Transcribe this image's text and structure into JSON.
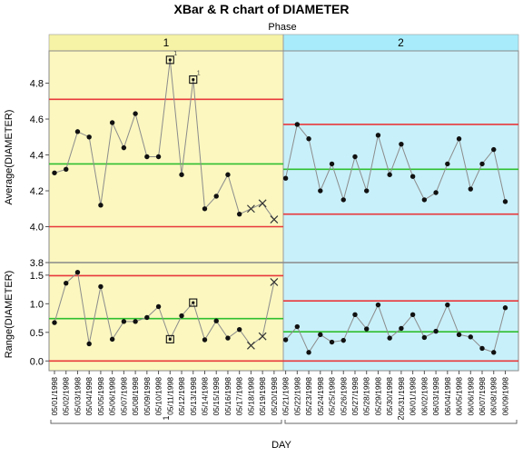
{
  "title": "XBar & R chart of DIAMETER",
  "phase_label": "Phase",
  "phases": [
    {
      "label": "1"
    },
    {
      "label": "2"
    }
  ],
  "ylabel_top": "Average(DIAMETER)",
  "ylabel_bottom": "Range(DIAMETER)",
  "xlabel": "DAY",
  "colors": {
    "phase1_bg": "#fbf7bf",
    "phase2_bg": "#c8f0fa",
    "phase1_header": "#f6f3a6",
    "phase2_header": "#a8ecfb",
    "limit_line": "#e8383b",
    "center_line": "#2fbf2f",
    "series_line": "#8c8c8c",
    "point": "#111111"
  },
  "chart_data": [
    {
      "type": "line",
      "name": "xbar",
      "ylabel": "Average(DIAMETER)",
      "ylim": [
        3.8,
        4.98
      ],
      "yticks": [
        "3.8",
        "4.0",
        "4.2",
        "4.4",
        "4.6",
        "4.8"
      ],
      "categories": [
        "05/01/1998",
        "05/02/1998",
        "05/03/1998",
        "05/04/1998",
        "05/05/1998",
        "05/06/1998",
        "05/07/1998",
        "05/08/1998",
        "05/09/1998",
        "05/10/1998",
        "05/11/1998",
        "05/12/1998",
        "05/13/1998",
        "05/14/1998",
        "05/15/1998",
        "05/16/1998",
        "05/17/1998",
        "05/18/1998",
        "05/19/1998",
        "05/20/1998",
        "05/21/1998",
        "05/22/1998",
        "05/23/1998",
        "05/24/1998",
        "05/25/1998",
        "05/26/1998",
        "05/27/1998",
        "05/28/1998",
        "05/29/1998",
        "05/30/1998",
        "05/31/1998",
        "06/01/1998",
        "06/02/1998",
        "06/03/1998",
        "06/04/1998",
        "06/05/1998",
        "06/06/1998",
        "06/07/1998",
        "06/08/1998",
        "06/09/1998"
      ],
      "values": [
        4.3,
        4.32,
        4.53,
        4.5,
        4.12,
        4.58,
        4.44,
        4.63,
        4.39,
        4.39,
        4.93,
        4.29,
        4.82,
        4.1,
        4.17,
        4.29,
        4.07,
        4.1,
        4.13,
        4.04,
        4.27,
        4.57,
        4.49,
        4.2,
        4.35,
        4.15,
        4.39,
        4.2,
        4.51,
        4.29,
        4.46,
        4.28,
        4.15,
        4.19,
        4.35,
        4.49,
        4.21,
        4.35,
        4.43,
        4.14
      ],
      "markers": [
        "dot",
        "dot",
        "dot",
        "dot",
        "dot",
        "dot",
        "dot",
        "dot",
        "dot",
        "dot",
        "square",
        "dot",
        "square",
        "dot",
        "dot",
        "dot",
        "dot",
        "x",
        "x",
        "x",
        "dot",
        "dot",
        "dot",
        "dot",
        "dot",
        "dot",
        "dot",
        "dot",
        "dot",
        "dot",
        "dot",
        "dot",
        "dot",
        "dot",
        "dot",
        "dot",
        "dot",
        "dot",
        "dot",
        "dot"
      ],
      "flags": [
        {
          "index": 10,
          "label": "1"
        },
        {
          "index": 12,
          "label": "1"
        }
      ],
      "phase_limits": [
        {
          "start": 0,
          "end": 19,
          "ucl": 4.71,
          "center": 4.35,
          "lcl": 4.0
        },
        {
          "start": 20,
          "end": 39,
          "ucl": 4.57,
          "center": 4.32,
          "lcl": 4.07
        }
      ]
    },
    {
      "type": "line",
      "name": "range",
      "ylabel": "Range(DIAMETER)",
      "ylim": [
        -0.17,
        1.72
      ],
      "yticks": [
        "0.0",
        "0.5",
        "1.0",
        "1.5"
      ],
      "values": [
        0.67,
        1.36,
        1.55,
        0.3,
        1.3,
        0.38,
        0.69,
        0.69,
        0.76,
        0.95,
        0.38,
        0.79,
        1.02,
        0.37,
        0.7,
        0.4,
        0.55,
        0.27,
        0.43,
        1.38,
        0.37,
        0.6,
        0.15,
        0.46,
        0.33,
        0.36,
        0.81,
        0.56,
        0.98,
        0.4,
        0.57,
        0.81,
        0.41,
        0.52,
        0.98,
        0.46,
        0.42,
        0.22,
        0.15,
        0.93
      ],
      "markers": [
        "dot",
        "dot",
        "dot",
        "dot",
        "dot",
        "dot",
        "dot",
        "dot",
        "dot",
        "dot",
        "square",
        "dot",
        "square",
        "dot",
        "dot",
        "dot",
        "dot",
        "x",
        "x",
        "x",
        "dot",
        "dot",
        "dot",
        "dot",
        "dot",
        "dot",
        "dot",
        "dot",
        "dot",
        "dot",
        "dot",
        "dot",
        "dot",
        "dot",
        "dot",
        "dot",
        "dot",
        "dot",
        "dot",
        "dot"
      ],
      "phase_limits": [
        {
          "start": 0,
          "end": 19,
          "ucl": 1.49,
          "center": 0.74,
          "lcl": 0.0
        },
        {
          "start": 20,
          "end": 39,
          "ucl": 1.05,
          "center": 0.51,
          "lcl": 0.0
        }
      ]
    }
  ]
}
